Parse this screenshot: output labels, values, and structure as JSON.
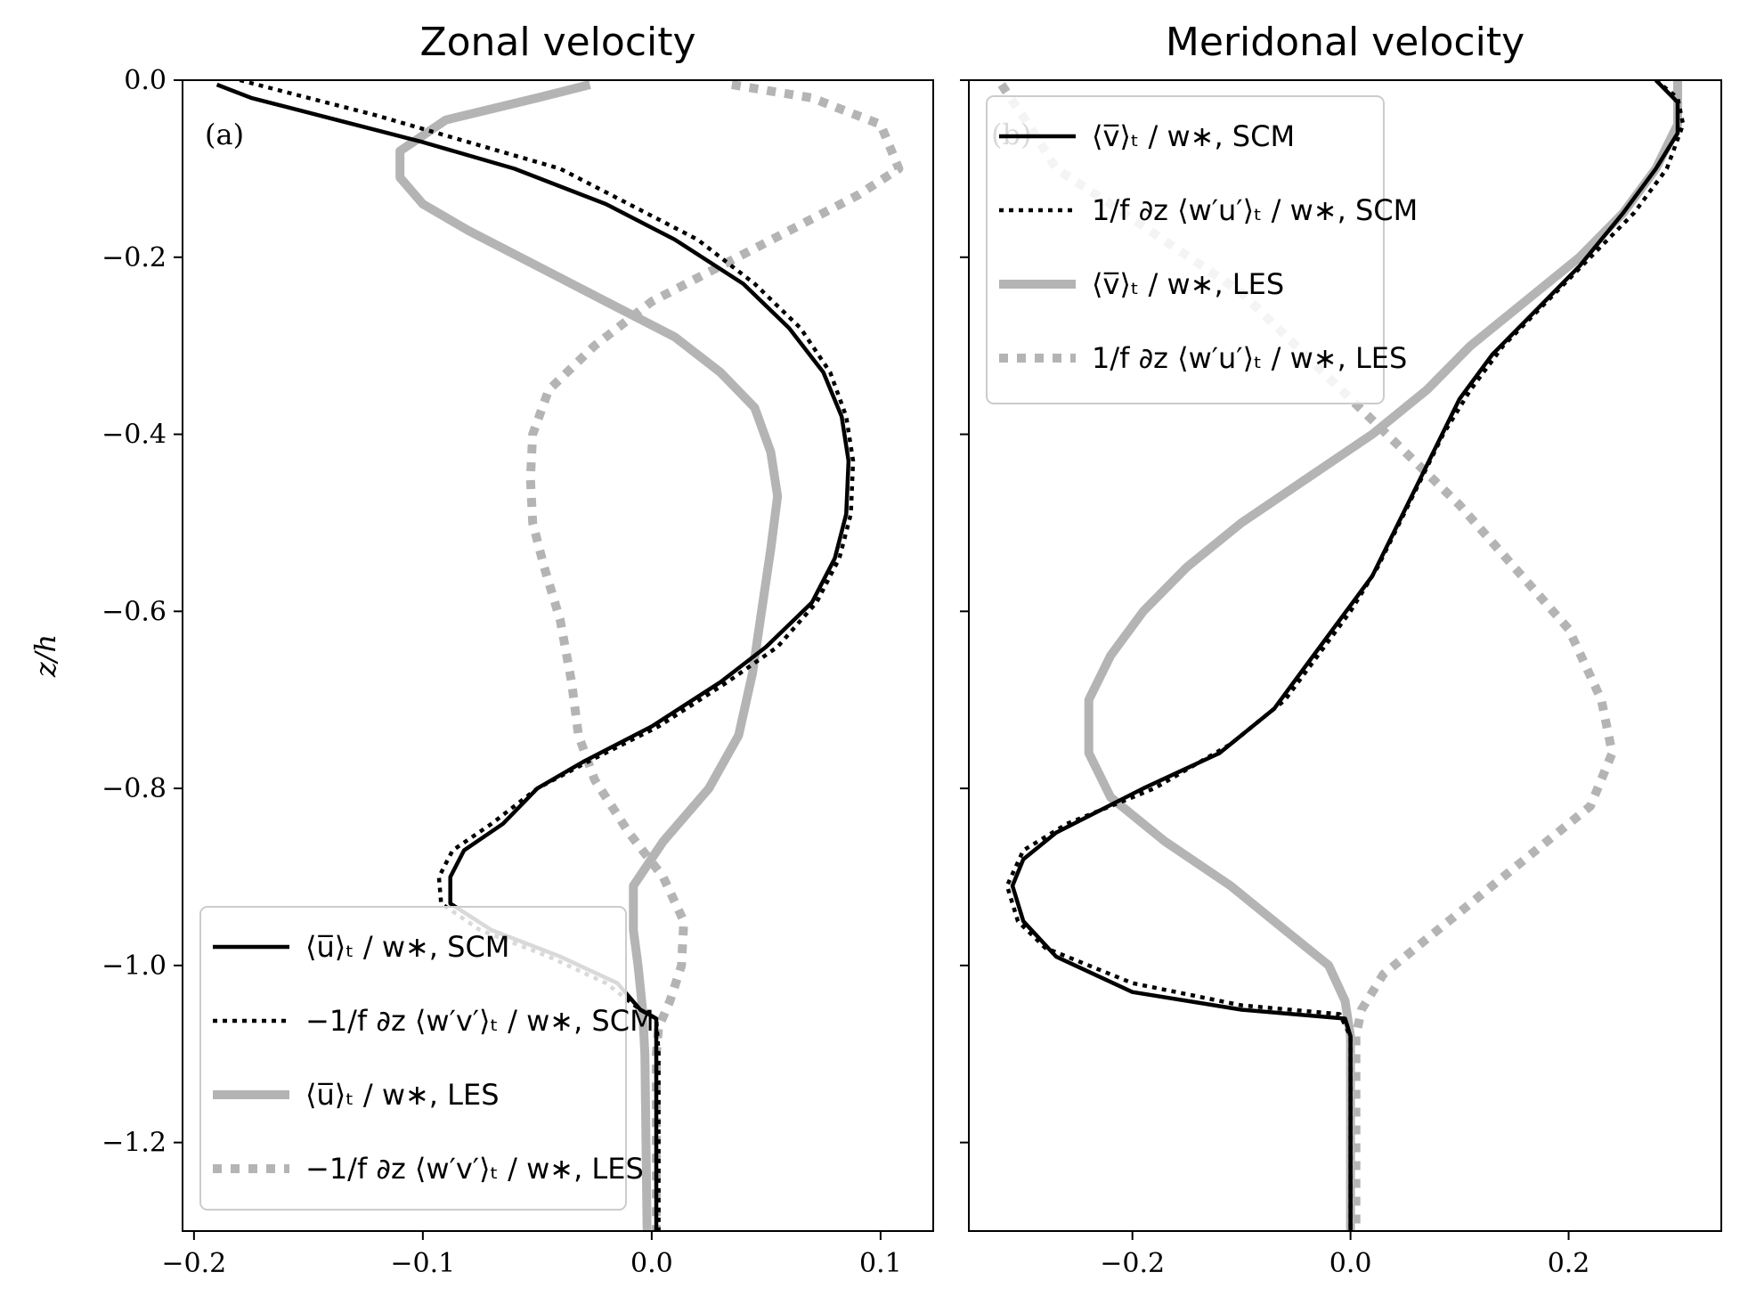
{
  "ylabel": "z/h",
  "chart_data": [
    {
      "type": "line",
      "title": "Zonal velocity",
      "panel_label": "(a)",
      "xlim": [
        -0.205,
        0.123
      ],
      "ylim": [
        -1.3,
        0.0
      ],
      "xticks": [
        -0.2,
        -0.1,
        0.0,
        0.1
      ],
      "xtick_labels": [
        "−0.2",
        "−0.1",
        "0.0",
        "0.1"
      ],
      "yticks": [
        0.0,
        -0.2,
        -0.4,
        -0.6,
        -0.8,
        -1.0,
        -1.2
      ],
      "ytick_labels": [
        "0.0",
        "−0.2",
        "−0.4",
        "−0.6",
        "−0.8",
        "−1.0",
        "−1.2"
      ],
      "legend_position": "lower-left",
      "series": [
        {
          "name": "⟨u̅⟩ₜ / w∗, SCM",
          "color": "#000000",
          "style": "solid",
          "points": [
            [
              -0.19,
              -0.005
            ],
            [
              -0.175,
              -0.02
            ],
            [
              -0.16,
              -0.03
            ],
            [
              -0.13,
              -0.05
            ],
            [
              -0.1,
              -0.07
            ],
            [
              -0.06,
              -0.1
            ],
            [
              -0.02,
              -0.14
            ],
            [
              0.01,
              -0.18
            ],
            [
              0.04,
              -0.23
            ],
            [
              0.06,
              -0.28
            ],
            [
              0.075,
              -0.33
            ],
            [
              0.083,
              -0.38
            ],
            [
              0.086,
              -0.43
            ],
            [
              0.085,
              -0.49
            ],
            [
              0.08,
              -0.54
            ],
            [
              0.07,
              -0.59
            ],
            [
              0.05,
              -0.64
            ],
            [
              0.03,
              -0.68
            ],
            [
              0.0,
              -0.73
            ],
            [
              -0.03,
              -0.77
            ],
            [
              -0.05,
              -0.8
            ],
            [
              -0.065,
              -0.84
            ],
            [
              -0.082,
              -0.87
            ],
            [
              -0.088,
              -0.9
            ],
            [
              -0.088,
              -0.93
            ],
            [
              -0.07,
              -0.96
            ],
            [
              -0.04,
              -0.99
            ],
            [
              -0.015,
              -1.02
            ],
            [
              -0.005,
              -1.05
            ],
            [
              0.002,
              -1.06
            ],
            [
              0.002,
              -1.1
            ],
            [
              0.002,
              -1.3
            ]
          ]
        },
        {
          "name": "−1/f ∂z ⟨w′v′⟩ₜ / w∗, SCM",
          "color": "#000000",
          "style": "dotted",
          "points": [
            [
              -0.18,
              0.0
            ],
            [
              -0.15,
              -0.02
            ],
            [
              -0.12,
              -0.04
            ],
            [
              -0.08,
              -0.07
            ],
            [
              -0.04,
              -0.1
            ],
            [
              -0.01,
              -0.14
            ],
            [
              0.02,
              -0.18
            ],
            [
              0.045,
              -0.23
            ],
            [
              0.065,
              -0.28
            ],
            [
              0.078,
              -0.33
            ],
            [
              0.085,
              -0.38
            ],
            [
              0.088,
              -0.43
            ],
            [
              0.087,
              -0.49
            ],
            [
              0.082,
              -0.54
            ],
            [
              0.072,
              -0.59
            ],
            [
              0.055,
              -0.64
            ],
            [
              0.033,
              -0.68
            ],
            [
              0.003,
              -0.73
            ],
            [
              -0.028,
              -0.77
            ],
            [
              -0.05,
              -0.8
            ],
            [
              -0.07,
              -0.84
            ],
            [
              -0.087,
              -0.87
            ],
            [
              -0.093,
              -0.9
            ],
            [
              -0.092,
              -0.93
            ],
            [
              -0.075,
              -0.96
            ],
            [
              -0.045,
              -0.99
            ],
            [
              -0.02,
              -1.02
            ],
            [
              -0.005,
              -1.05
            ],
            [
              0.002,
              -1.06
            ],
            [
              0.003,
              -1.1
            ],
            [
              0.003,
              -1.3
            ]
          ]
        },
        {
          "name": "⟨u̅⟩ₜ / w∗, LES",
          "color": "#b4b4b4",
          "style": "solid-thick",
          "points": [
            [
              -0.027,
              -0.005
            ],
            [
              -0.05,
              -0.02
            ],
            [
              -0.09,
              -0.045
            ],
            [
              -0.11,
              -0.08
            ],
            [
              -0.11,
              -0.11
            ],
            [
              -0.1,
              -0.14
            ],
            [
              -0.08,
              -0.17
            ],
            [
              -0.05,
              -0.21
            ],
            [
              -0.02,
              -0.25
            ],
            [
              0.01,
              -0.29
            ],
            [
              0.03,
              -0.33
            ],
            [
              0.045,
              -0.37
            ],
            [
              0.052,
              -0.42
            ],
            [
              0.055,
              -0.47
            ],
            [
              0.052,
              -0.53
            ],
            [
              0.048,
              -0.6
            ],
            [
              0.044,
              -0.67
            ],
            [
              0.038,
              -0.74
            ],
            [
              0.025,
              -0.8
            ],
            [
              0.005,
              -0.86
            ],
            [
              -0.008,
              -0.91
            ],
            [
              -0.008,
              -0.96
            ],
            [
              -0.006,
              -1.0
            ],
            [
              -0.004,
              -1.05
            ],
            [
              -0.003,
              -1.1
            ],
            [
              -0.002,
              -1.3
            ]
          ]
        },
        {
          "name": "−1/f ∂z ⟨w′v′⟩ₜ / w∗, LES",
          "color": "#b4b4b4",
          "style": "dotted-thick",
          "points": [
            [
              0.035,
              -0.005
            ],
            [
              0.07,
              -0.02
            ],
            [
              0.1,
              -0.05
            ],
            [
              0.108,
              -0.1
            ],
            [
              0.09,
              -0.13
            ],
            [
              0.06,
              -0.17
            ],
            [
              0.03,
              -0.21
            ],
            [
              0.0,
              -0.25
            ],
            [
              -0.025,
              -0.3
            ],
            [
              -0.045,
              -0.35
            ],
            [
              -0.052,
              -0.4
            ],
            [
              -0.053,
              -0.45
            ],
            [
              -0.052,
              -0.5
            ],
            [
              -0.047,
              -0.55
            ],
            [
              -0.04,
              -0.61
            ],
            [
              -0.035,
              -0.68
            ],
            [
              -0.032,
              -0.74
            ],
            [
              -0.025,
              -0.79
            ],
            [
              -0.01,
              -0.85
            ],
            [
              0.005,
              -0.9
            ],
            [
              0.014,
              -0.95
            ],
            [
              0.013,
              -1.0
            ],
            [
              0.008,
              -1.04
            ],
            [
              0.003,
              -1.07
            ],
            [
              0.002,
              -1.1
            ],
            [
              0.002,
              -1.3
            ]
          ]
        }
      ],
      "legend": [
        {
          "text": "⟨u̅⟩ₜ / w∗, SCM",
          "color": "#000000",
          "style": "solid"
        },
        {
          "text": "−1/f ∂z ⟨w′v′⟩ₜ / w∗, SCM",
          "color": "#000000",
          "style": "dotted"
        },
        {
          "text": "⟨u̅⟩ₜ / w∗, LES",
          "color": "#b4b4b4",
          "style": "solid-thick"
        },
        {
          "text": "−1/f ∂z ⟨w′v′⟩ₜ / w∗, LES",
          "color": "#b4b4b4",
          "style": "dotted-thick"
        }
      ]
    },
    {
      "type": "line",
      "title": "Meridonal velocity",
      "panel_label": "(b)",
      "xlim": [
        -0.35,
        0.34
      ],
      "ylim": [
        -1.3,
        0.0
      ],
      "xticks": [
        -0.2,
        0.0,
        0.2
      ],
      "xtick_labels": [
        "−0.2",
        "0.0",
        "0.2"
      ],
      "legend_position": "upper-left",
      "series": [
        {
          "name": "⟨v̅⟩ₜ / w∗, SCM",
          "color": "#000000",
          "style": "solid",
          "points": [
            [
              0.28,
              0.0
            ],
            [
              0.3,
              -0.025
            ],
            [
              0.3,
              -0.06
            ],
            [
              0.28,
              -0.1
            ],
            [
              0.25,
              -0.15
            ],
            [
              0.21,
              -0.21
            ],
            [
              0.17,
              -0.26
            ],
            [
              0.13,
              -0.31
            ],
            [
              0.1,
              -0.36
            ],
            [
              0.08,
              -0.41
            ],
            [
              0.06,
              -0.46
            ],
            [
              0.04,
              -0.51
            ],
            [
              0.02,
              -0.56
            ],
            [
              -0.01,
              -0.61
            ],
            [
              -0.04,
              -0.66
            ],
            [
              -0.07,
              -0.71
            ],
            [
              -0.12,
              -0.76
            ],
            [
              -0.19,
              -0.8
            ],
            [
              -0.27,
              -0.85
            ],
            [
              -0.3,
              -0.88
            ],
            [
              -0.31,
              -0.91
            ],
            [
              -0.3,
              -0.95
            ],
            [
              -0.27,
              -0.99
            ],
            [
              -0.2,
              -1.03
            ],
            [
              -0.1,
              -1.05
            ],
            [
              -0.005,
              -1.06
            ],
            [
              0.0,
              -1.08
            ],
            [
              0.0,
              -1.3
            ]
          ]
        },
        {
          "name": "1/f ∂z ⟨w′u′⟩ₜ / w∗, SCM",
          "color": "#000000",
          "style": "dotted",
          "points": [
            [
              0.28,
              0.0
            ],
            [
              0.3,
              -0.02
            ],
            [
              0.305,
              -0.05
            ],
            [
              0.29,
              -0.1
            ],
            [
              0.26,
              -0.15
            ],
            [
              0.22,
              -0.2
            ],
            [
              0.18,
              -0.25
            ],
            [
              0.14,
              -0.3
            ],
            [
              0.11,
              -0.35
            ],
            [
              0.085,
              -0.4
            ],
            [
              0.065,
              -0.45
            ],
            [
              0.045,
              -0.5
            ],
            [
              0.025,
              -0.55
            ],
            [
              0.0,
              -0.6
            ],
            [
              -0.03,
              -0.65
            ],
            [
              -0.06,
              -0.7
            ],
            [
              -0.11,
              -0.75
            ],
            [
              -0.18,
              -0.8
            ],
            [
              -0.26,
              -0.84
            ],
            [
              -0.3,
              -0.87
            ],
            [
              -0.315,
              -0.91
            ],
            [
              -0.305,
              -0.95
            ],
            [
              -0.28,
              -0.98
            ],
            [
              -0.2,
              -1.02
            ],
            [
              -0.1,
              -1.045
            ],
            [
              -0.01,
              -1.055
            ],
            [
              0.0,
              -1.08
            ],
            [
              0.0,
              -1.3
            ]
          ]
        },
        {
          "name": "⟨v̅⟩ₜ / w∗, LES",
          "color": "#b4b4b4",
          "style": "solid-thick",
          "points": [
            [
              0.3,
              0.0
            ],
            [
              0.3,
              -0.05
            ],
            [
              0.28,
              -0.1
            ],
            [
              0.25,
              -0.15
            ],
            [
              0.21,
              -0.2
            ],
            [
              0.16,
              -0.25
            ],
            [
              0.11,
              -0.3
            ],
            [
              0.07,
              -0.35
            ],
            [
              0.02,
              -0.4
            ],
            [
              -0.04,
              -0.45
            ],
            [
              -0.1,
              -0.5
            ],
            [
              -0.15,
              -0.55
            ],
            [
              -0.19,
              -0.6
            ],
            [
              -0.22,
              -0.65
            ],
            [
              -0.24,
              -0.7
            ],
            [
              -0.24,
              -0.76
            ],
            [
              -0.22,
              -0.81
            ],
            [
              -0.17,
              -0.86
            ],
            [
              -0.11,
              -0.91
            ],
            [
              -0.06,
              -0.96
            ],
            [
              -0.02,
              -1.0
            ],
            [
              -0.005,
              -1.04
            ],
            [
              0.0,
              -1.08
            ],
            [
              0.0,
              -1.3
            ]
          ]
        },
        {
          "name": "1/f ∂z ⟨w′u′⟩ₜ / w∗, LES",
          "color": "#b4b4b4",
          "style": "dotted-thick",
          "points": [
            [
              -0.32,
              -0.005
            ],
            [
              -0.29,
              -0.06
            ],
            [
              -0.27,
              -0.1
            ],
            [
              -0.22,
              -0.14
            ],
            [
              -0.16,
              -0.19
            ],
            [
              -0.1,
              -0.24
            ],
            [
              -0.05,
              -0.3
            ],
            [
              0.0,
              -0.36
            ],
            [
              0.05,
              -0.42
            ],
            [
              0.1,
              -0.48
            ],
            [
              0.15,
              -0.55
            ],
            [
              0.2,
              -0.62
            ],
            [
              0.23,
              -0.7
            ],
            [
              0.24,
              -0.76
            ],
            [
              0.22,
              -0.82
            ],
            [
              0.17,
              -0.87
            ],
            [
              0.12,
              -0.92
            ],
            [
              0.07,
              -0.97
            ],
            [
              0.03,
              -1.01
            ],
            [
              0.01,
              -1.05
            ],
            [
              0.005,
              -1.08
            ],
            [
              0.005,
              -1.3
            ]
          ]
        }
      ],
      "legend": [
        {
          "text": "⟨v̅⟩ₜ / w∗, SCM",
          "color": "#000000",
          "style": "solid"
        },
        {
          "text": "1/f ∂z ⟨w′u′⟩ₜ / w∗, SCM",
          "color": "#000000",
          "style": "dotted"
        },
        {
          "text": "⟨v̅⟩ₜ / w∗, LES",
          "color": "#b4b4b4",
          "style": "solid-thick"
        },
        {
          "text": "1/f ∂z ⟨w′u′⟩ₜ / w∗, LES",
          "color": "#b4b4b4",
          "style": "dotted-thick"
        }
      ]
    }
  ]
}
